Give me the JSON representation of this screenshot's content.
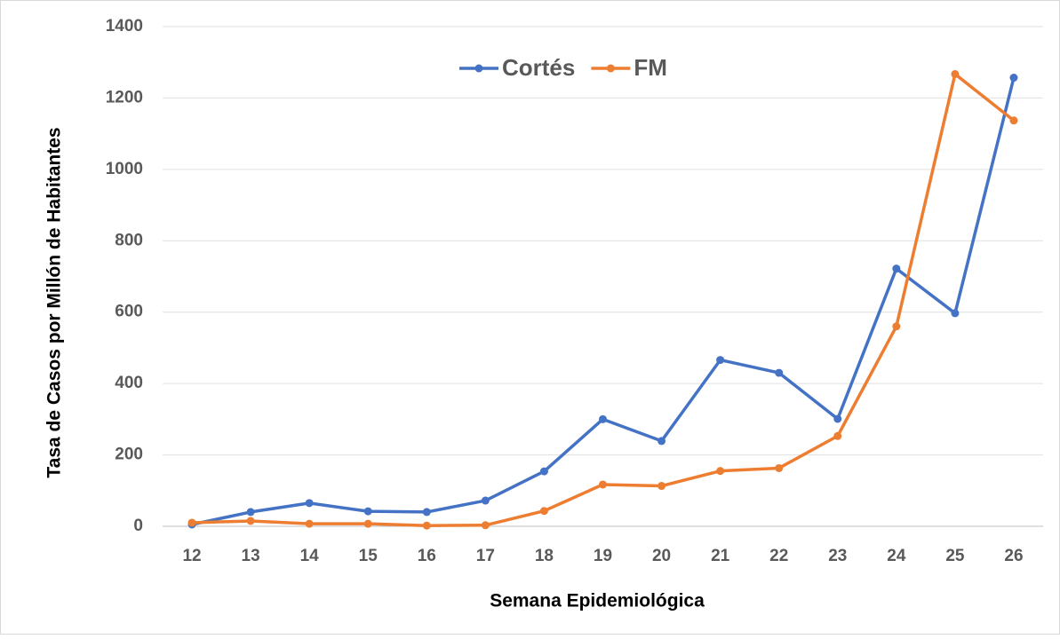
{
  "chart_data": {
    "type": "line",
    "x_label": "Semana Epidemiológica",
    "y_label": "Tasa de Casos por Millón de Habitantes",
    "categories": [
      "12",
      "13",
      "14",
      "15",
      "16",
      "17",
      "18",
      "19",
      "20",
      "21",
      "22",
      "23",
      "24",
      "25",
      "26"
    ],
    "series": [
      {
        "name": "Cortés",
        "color": "#4472c4",
        "values": [
          5,
          40,
          65,
          42,
          40,
          72,
          154,
          300,
          239,
          466,
          430,
          301,
          722,
          597,
          1257
        ]
      },
      {
        "name": "FM",
        "color": "#ed7d31",
        "values": [
          10,
          15,
          7,
          7,
          2,
          3,
          43,
          117,
          113,
          155,
          163,
          253,
          560,
          1267,
          1137
        ]
      }
    ],
    "ylim": [
      0,
      1400
    ],
    "yticks": [
      0,
      200,
      400,
      600,
      800,
      1000,
      1200,
      1400
    ],
    "grid": true,
    "legend": "top"
  }
}
